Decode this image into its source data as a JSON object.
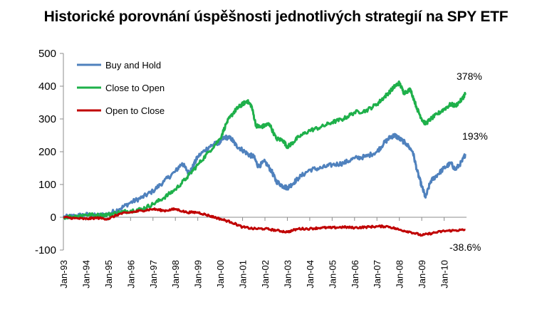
{
  "chart_data": {
    "type": "line",
    "title": "Historické porovnání úspěšnosti jednotlivých strategií na SPY ETF",
    "xlabel": "",
    "ylabel": "",
    "ylim": [
      -100,
      500
    ],
    "yticks": [
      "500",
      "400",
      "300",
      "200",
      "100",
      "0",
      "-100"
    ],
    "ytick_values": [
      500,
      400,
      300,
      200,
      100,
      0,
      -100
    ],
    "xlim": [
      1993.0,
      2011.0
    ],
    "xticks": [
      "Jan-93",
      "Jan-94",
      "Jan-95",
      "Jan-96",
      "Jan-97",
      "Jan-98",
      "Jan-99",
      "Jan-00",
      "Jan-01",
      "Jan-02",
      "Jan-03",
      "Jan-04",
      "Jan-05",
      "Jan-06",
      "Jan-07",
      "Jan-08",
      "Jan-09",
      "Jan-10"
    ],
    "xtick_values": [
      1993,
      1994,
      1995,
      1996,
      1997,
      1998,
      1999,
      2000,
      2001,
      2002,
      2003,
      2004,
      2005,
      2006,
      2007,
      2008,
      2009,
      2010
    ],
    "grid": false,
    "legend_position": "top-left",
    "series": [
      {
        "name": "Buy and Hold",
        "color": "#4f81bd",
        "end_label": "193%",
        "x": [
          1993.0,
          1993.5,
          1994.0,
          1994.5,
          1995.0,
          1995.5,
          1996.0,
          1996.5,
          1997.0,
          1997.5,
          1998.0,
          1998.3,
          1998.6,
          1998.75,
          1999.0,
          1999.5,
          1999.8,
          2000.0,
          2000.2,
          2000.5,
          2000.7,
          2001.0,
          2001.3,
          2001.5,
          2001.7,
          2002.0,
          2002.3,
          2002.5,
          2002.8,
          2003.0,
          2003.2,
          2003.5,
          2004.0,
          2004.5,
          2005.0,
          2005.5,
          2006.0,
          2006.5,
          2007.0,
          2007.3,
          2007.6,
          2007.8,
          2008.0,
          2008.3,
          2008.6,
          2008.8,
          2009.0,
          2009.17,
          2009.4,
          2009.7,
          2010.0,
          2010.3,
          2010.5,
          2010.8,
          2010.95
        ],
        "y": [
          0,
          4,
          8,
          4,
          10,
          25,
          45,
          60,
          80,
          110,
          140,
          165,
          135,
          150,
          185,
          215,
          225,
          230,
          245,
          240,
          220,
          205,
          190,
          185,
          155,
          170,
          140,
          110,
          95,
          90,
          100,
          120,
          145,
          150,
          160,
          165,
          180,
          185,
          200,
          225,
          245,
          250,
          240,
          225,
          200,
          140,
          95,
          60,
          110,
          130,
          150,
          165,
          145,
          170,
          193
        ]
      },
      {
        "name": "Close to Open",
        "color": "#1eb04a",
        "end_label": "378%",
        "x": [
          1993.0,
          1993.5,
          1994.0,
          1994.5,
          1995.0,
          1995.5,
          1996.0,
          1996.5,
          1997.0,
          1997.5,
          1998.0,
          1998.5,
          1999.0,
          1999.5,
          2000.0,
          2000.3,
          2000.6,
          2000.8,
          2001.0,
          2001.2,
          2001.4,
          2001.6,
          2001.8,
          2002.0,
          2002.2,
          2002.5,
          2002.8,
          2003.0,
          2003.2,
          2003.5,
          2004.0,
          2004.5,
          2005.0,
          2005.5,
          2006.0,
          2006.5,
          2007.0,
          2007.3,
          2007.6,
          2007.8,
          2008.0,
          2008.2,
          2008.5,
          2008.8,
          2009.0,
          2009.17,
          2009.4,
          2009.7,
          2010.0,
          2010.3,
          2010.5,
          2010.8,
          2010.95
        ],
        "y": [
          0,
          3,
          8,
          6,
          8,
          15,
          20,
          25,
          40,
          60,
          85,
          120,
          160,
          200,
          240,
          290,
          320,
          335,
          345,
          355,
          340,
          280,
          275,
          280,
          285,
          240,
          235,
          215,
          225,
          245,
          265,
          275,
          290,
          300,
          320,
          325,
          345,
          365,
          385,
          400,
          410,
          380,
          390,
          330,
          300,
          285,
          300,
          315,
          330,
          345,
          340,
          360,
          378
        ]
      },
      {
        "name": "Open to Close",
        "color": "#c00000",
        "end_label": "-38.6%",
        "x": [
          1993.0,
          1993.5,
          1994.0,
          1994.5,
          1995.0,
          1995.5,
          1996.0,
          1996.5,
          1997.0,
          1997.5,
          1998.0,
          1998.5,
          1999.0,
          1999.5,
          2000.0,
          2000.5,
          2001.0,
          2001.5,
          2002.0,
          2002.5,
          2003.0,
          2003.5,
          2004.0,
          2004.5,
          2005.0,
          2005.5,
          2006.0,
          2006.5,
          2007.0,
          2007.5,
          2008.0,
          2008.5,
          2009.0,
          2009.5,
          2010.0,
          2010.5,
          2010.95
        ],
        "y": [
          0,
          -3,
          -5,
          -2,
          -5,
          10,
          15,
          20,
          25,
          20,
          25,
          15,
          15,
          5,
          -5,
          -15,
          -30,
          -35,
          -35,
          -40,
          -45,
          -35,
          -35,
          -32,
          -32,
          -30,
          -32,
          -30,
          -28,
          -28,
          -38,
          -45,
          -55,
          -48,
          -42,
          -40,
          -38.6
        ]
      }
    ]
  }
}
